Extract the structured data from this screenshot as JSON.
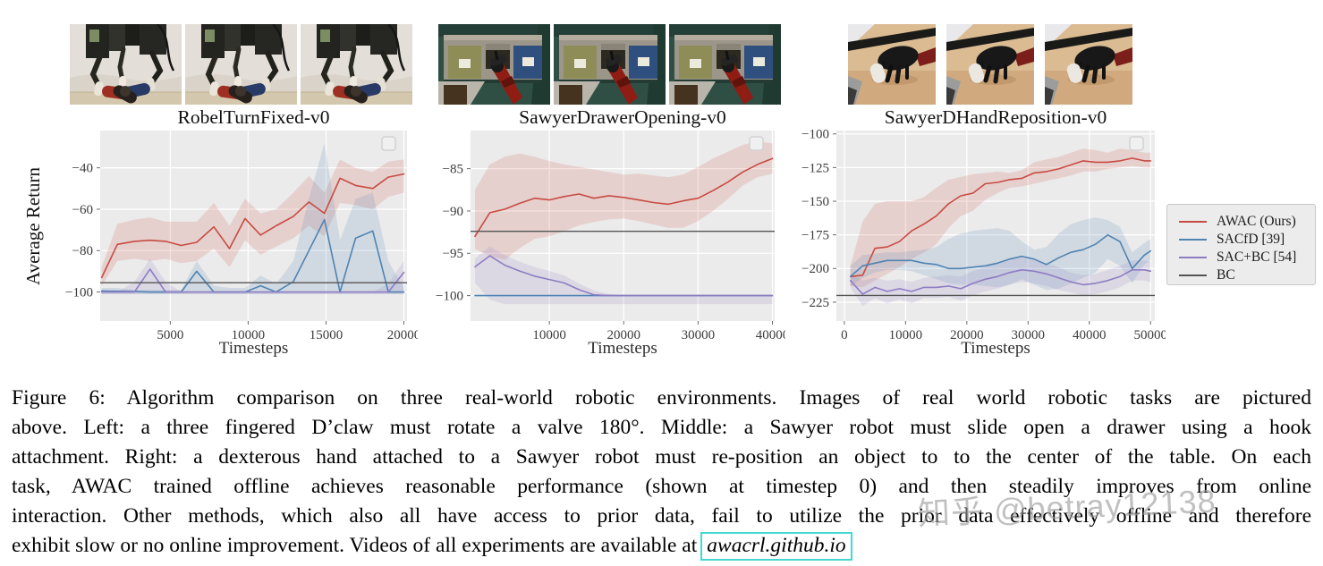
{
  "figure": {
    "caption_lines": [
      "Figure 6: Algorithm comparison on three real-world robotic environments. Images of real world robotic tasks are pictured",
      "above. Left: a three fingered D’claw must rotate a valve 180°. Middle: a Sawyer robot must slide open a drawer using a hook",
      "attachment. Right: a dexterous hand attached to a Sawyer robot must re-position an object to to the center of the table. On each",
      "task, AWAC trained offline achieves reasonable performance (shown at timestep 0) and then steadily improves from online",
      "interaction. Other methods, which also all have access to prior data, fail to utilize the prior data effectively offline and therefore"
    ],
    "caption_last_line": "exhibit slow or no online improvement. Videos of all experiments are available at",
    "link_text": "awacrl.github.io"
  },
  "watermark": {
    "text": "知乎 @betray12138"
  },
  "legend": {
    "items": [
      {
        "label": "AWAC (Ours)",
        "color": "#c84b42"
      },
      {
        "label": "SACfD [39]",
        "color": "#4f83b2"
      },
      {
        "label": "SAC+BC [54]",
        "color": "#8e7cc3"
      },
      {
        "label": "BC",
        "color": "#545454"
      }
    ]
  },
  "photos": {
    "groups": [
      {
        "name": "dclaw-valve-turning",
        "frames": 3
      },
      {
        "name": "sawyer-drawer-opening",
        "frames": 3
      },
      {
        "name": "sawyer-dhand-reposition",
        "frames": 3
      }
    ]
  },
  "chart_data": [
    {
      "type": "line",
      "title": "RobelTurnFixed-v0",
      "xlabel": "Timesteps",
      "ylabel": "Average Return",
      "xlim": [
        500,
        20200
      ],
      "ylim": [
        -114,
        -22
      ],
      "xticks": [
        5000,
        10000,
        15000,
        20000
      ],
      "yticks": [
        -40,
        -60,
        -80,
        -100
      ],
      "grid": true,
      "series": [
        {
          "name": "AWAC (Ours)",
          "color": "#c84b42",
          "x": [
            600,
            1600,
            2700,
            3700,
            4700,
            5700,
            6700,
            7800,
            8800,
            9800,
            10800,
            11800,
            12900,
            13900,
            14900,
            15900,
            16900,
            18000,
            19000,
            20000
          ],
          "y": [
            -93,
            -77,
            -75.5,
            -75,
            -75.5,
            -77.5,
            -76,
            -68.5,
            -79,
            -64.5,
            -72.5,
            -68,
            -63.5,
            -56.5,
            -62,
            -45,
            -48.5,
            -50,
            -44.5,
            -43
          ],
          "band_upper": [
            -88,
            -67,
            -65,
            -64,
            -66,
            -66,
            -66,
            -57,
            -68,
            -55,
            -62,
            -60,
            -52,
            -44,
            -52,
            -36,
            -40,
            -42,
            -37,
            -36
          ],
          "band_lower": [
            -97,
            -85,
            -84,
            -85,
            -84,
            -86,
            -85,
            -79,
            -88,
            -75,
            -82,
            -78,
            -74,
            -68,
            -73,
            -57,
            -58,
            -60,
            -54,
            -52
          ]
        },
        {
          "name": "SACfD [39]",
          "color": "#4f83b2",
          "x": [
            600,
            1600,
            2700,
            3700,
            4700,
            5700,
            6700,
            7800,
            8800,
            9800,
            10800,
            11800,
            12900,
            13900,
            14900,
            15900,
            16900,
            18000,
            19000,
            20000
          ],
          "y": [
            -99.5,
            -99.6,
            -99.8,
            -100,
            -100,
            -100,
            -90,
            -100,
            -100,
            -100,
            -97,
            -100,
            -95,
            -80,
            -65,
            -100,
            -74,
            -70.5,
            -100,
            -100
          ],
          "band_upper": [
            -98,
            -98,
            -99,
            -99,
            -99,
            -99,
            -85,
            -97,
            -98,
            -98,
            -92,
            -96,
            -85,
            -55,
            -28,
            -75,
            -55,
            -52,
            -85,
            -98
          ],
          "band_lower": [
            -101,
            -101,
            -101,
            -101,
            -101,
            -101,
            -101,
            -101,
            -101,
            -101,
            -101,
            -101,
            -101,
            -101,
            -101,
            -101,
            -101,
            -101,
            -101,
            -101
          ]
        },
        {
          "name": "SAC+BC [54]",
          "color": "#8e7cc3",
          "x": [
            600,
            1600,
            2700,
            3700,
            4700,
            5700,
            6700,
            7800,
            8800,
            9800,
            10800,
            11800,
            12900,
            13900,
            14900,
            15900,
            16900,
            18000,
            19000,
            20000
          ],
          "y": [
            -100,
            -100,
            -100,
            -89,
            -100,
            -100,
            -100,
            -100,
            -100,
            -100,
            -100,
            -100,
            -100,
            -100,
            -100,
            -100,
            -100,
            -100,
            -100,
            -90.5
          ],
          "band_upper": [
            -100,
            -100,
            -95,
            -84,
            -95,
            -100,
            -100,
            -100,
            -100,
            -100,
            -100,
            -100,
            -100,
            -100,
            -100,
            -100,
            -100,
            -100,
            -96,
            -85
          ],
          "band_lower": [
            -101,
            -101,
            -101,
            -101,
            -101,
            -101,
            -101,
            -101,
            -101,
            -101,
            -101,
            -101,
            -101,
            -101,
            -101,
            -101,
            -101,
            -101,
            -101,
            -101
          ]
        },
        {
          "name": "BC",
          "color": "#545454",
          "baseline": -95.5
        }
      ]
    },
    {
      "type": "line",
      "title": "SawyerDrawerOpening-v0",
      "xlabel": "Timesteps",
      "ylabel": "",
      "xlim": [
        -600,
        40300
      ],
      "ylim": [
        -103,
        -80.5
      ],
      "xticks": [
        10000,
        20000,
        30000,
        40000
      ],
      "yticks": [
        -85,
        -90,
        -95,
        -100
      ],
      "grid": true,
      "series": [
        {
          "name": "AWAC (Ours)",
          "color": "#c84b42",
          "x": [
            0,
            2000,
            4000,
            6000,
            8000,
            10000,
            12000,
            14000,
            16000,
            18000,
            20000,
            22000,
            24000,
            26000,
            28000,
            30000,
            32000,
            34000,
            36000,
            38000,
            40000
          ],
          "y": [
            -93,
            -90.2,
            -89.8,
            -89.1,
            -88.5,
            -88.7,
            -88.3,
            -88,
            -88.5,
            -88.2,
            -88.4,
            -88.7,
            -89,
            -89.2,
            -88.8,
            -88.5,
            -87.6,
            -86.6,
            -85.4,
            -84.5,
            -83.8
          ],
          "band_upper": [
            -87.5,
            -84.5,
            -83.6,
            -83.2,
            -83.6,
            -84.1,
            -84.5,
            -84.8,
            -85.1,
            -85.4,
            -85.7,
            -85.6,
            -85.8,
            -86,
            -85.7,
            -84.8,
            -83.8,
            -83,
            -82.2,
            -81.8,
            -82
          ],
          "band_lower": [
            -94.5,
            -95.3,
            -95.8,
            -94.4,
            -93.3,
            -93,
            -92.4,
            -91.7,
            -91.3,
            -91,
            -90.9,
            -91.2,
            -91.6,
            -92,
            -92,
            -91.2,
            -90,
            -88.6,
            -87,
            -86,
            -85.6
          ]
        },
        {
          "name": "SACfD [39]",
          "color": "#4f83b2",
          "x": [
            0,
            2000,
            4000,
            6000,
            8000,
            10000,
            12000,
            14000,
            16000,
            18000,
            20000,
            22000,
            24000,
            26000,
            28000,
            30000,
            32000,
            34000,
            36000,
            38000,
            40000
          ],
          "y": [
            -100,
            -100,
            -100,
            -100,
            -100,
            -100,
            -100,
            -100,
            -100,
            -100,
            -100,
            -100,
            -100,
            -100,
            -100,
            -100,
            -100,
            -100,
            -100,
            -100,
            -100
          ]
        },
        {
          "name": "SAC+BC [54]",
          "color": "#8e7cc3",
          "x": [
            0,
            2000,
            4000,
            6000,
            8000,
            10000,
            12000,
            14000,
            16000,
            18000,
            20000,
            22000,
            24000,
            26000,
            28000,
            30000,
            32000,
            34000,
            36000,
            38000,
            40000
          ],
          "y": [
            -96.6,
            -95.3,
            -96.4,
            -97.1,
            -97.7,
            -98.1,
            -98.5,
            -99.3,
            -99.9,
            -100,
            -100,
            -100,
            -100,
            -100,
            -100,
            -100,
            -100,
            -100,
            -100,
            -100,
            -100
          ],
          "band_upper": [
            -95.6,
            -94.2,
            -95.2,
            -96,
            -96.6,
            -97.1,
            -97.6,
            -98.6,
            -99.4,
            -99.8,
            -100,
            -100,
            -100,
            -100,
            -100,
            -100,
            -100,
            -100,
            -100,
            -100,
            -100
          ],
          "band_lower": [
            -98.5,
            -100.5,
            -101,
            -101,
            -101,
            -101,
            -101,
            -101,
            -101,
            -101,
            -101,
            -101,
            -101,
            -101,
            -101,
            -101,
            -101,
            -101,
            -101,
            -101,
            -101
          ]
        },
        {
          "name": "BC",
          "color": "#545454",
          "baseline": -92.4
        }
      ]
    },
    {
      "type": "line",
      "title": "SawyerDHandReposition-v0",
      "xlabel": "Timesteps",
      "ylabel": "",
      "xlim": [
        -1300,
        50700
      ],
      "ylim": [
        -239,
        -97.5
      ],
      "xticks": [
        0,
        10000,
        20000,
        30000,
        40000,
        50000
      ],
      "yticks": [
        -100,
        -125,
        -150,
        -175,
        -200,
        -225
      ],
      "grid": true,
      "series": [
        {
          "name": "AWAC (Ours)",
          "color": "#c84b42",
          "x": [
            1000,
            3000,
            5000,
            7000,
            9000,
            11000,
            13000,
            15000,
            17000,
            19000,
            21000,
            23000,
            25000,
            27000,
            29000,
            31000,
            33000,
            35000,
            37000,
            39000,
            41000,
            43000,
            45000,
            47000,
            49000,
            50000
          ],
          "y": [
            -206,
            -205,
            -185,
            -184,
            -180,
            -172,
            -167,
            -161,
            -152,
            -146,
            -144,
            -137,
            -136,
            -134,
            -133,
            -129,
            -128,
            -126,
            -123,
            -120,
            -121,
            -121,
            -120,
            -118,
            -120,
            -120
          ],
          "band_upper": [
            -198,
            -165,
            -152,
            -150,
            -150,
            -150,
            -147,
            -140,
            -134,
            -132,
            -130,
            -129,
            -128,
            -129,
            -127,
            -121,
            -119,
            -117,
            -114,
            -111,
            -112,
            -114,
            -111,
            -112,
            -114,
            -114
          ],
          "band_lower": [
            -213,
            -214,
            -209,
            -204,
            -199,
            -193,
            -188,
            -182,
            -170,
            -161,
            -157,
            -149,
            -144,
            -140,
            -139,
            -137,
            -135,
            -133,
            -131,
            -128,
            -128,
            -126,
            -125,
            -124,
            -125,
            -125
          ]
        },
        {
          "name": "SACfD [39]",
          "color": "#4f83b2",
          "x": [
            1000,
            3000,
            5000,
            7000,
            9000,
            11000,
            13000,
            15000,
            17000,
            19000,
            21000,
            23000,
            25000,
            27000,
            29000,
            31000,
            33000,
            35000,
            37000,
            39000,
            41000,
            43000,
            45000,
            47000,
            49000,
            50000
          ],
          "y": [
            -206,
            -198,
            -196,
            -194,
            -194,
            -194,
            -196,
            -197,
            -200,
            -200,
            -199,
            -198,
            -196,
            -193,
            -191,
            -193,
            -197,
            -192,
            -188,
            -186,
            -182,
            -175,
            -180,
            -200,
            -190,
            -187
          ],
          "band_upper": [
            -198,
            -190,
            -189,
            -188,
            -188,
            -187,
            -186,
            -184,
            -178,
            -174,
            -172,
            -171,
            -170,
            -172,
            -180,
            -186,
            -184,
            -174,
            -167,
            -164,
            -162,
            -164,
            -169,
            -188,
            -181,
            -178
          ],
          "band_lower": [
            -213,
            -207,
            -203,
            -201,
            -201,
            -202,
            -205,
            -208,
            -211,
            -212,
            -212,
            -213,
            -214,
            -212,
            -208,
            -212,
            -216,
            -215,
            -211,
            -207,
            -203,
            -193,
            -198,
            -211,
            -197,
            -194
          ]
        },
        {
          "name": "SAC+BC [54]",
          "color": "#8e7cc3",
          "x": [
            1000,
            3000,
            5000,
            7000,
            9000,
            11000,
            13000,
            15000,
            17000,
            19000,
            21000,
            23000,
            25000,
            27000,
            29000,
            31000,
            33000,
            35000,
            37000,
            39000,
            41000,
            43000,
            45000,
            47000,
            49000,
            50000
          ],
          "y": [
            -209,
            -219,
            -214,
            -217,
            -215,
            -217,
            -214,
            -214,
            -213,
            -215,
            -211,
            -208,
            -206,
            -203,
            -201,
            -202,
            -204,
            -207,
            -210,
            -212,
            -211,
            -209,
            -206,
            -201,
            -201,
            -202
          ],
          "band_upper": [
            -204,
            -209,
            -207,
            -209,
            -208,
            -210,
            -207,
            -206,
            -205,
            -206,
            -202,
            -199,
            -196,
            -194,
            -192,
            -194,
            -196,
            -199,
            -203,
            -205,
            -204,
            -201,
            -198,
            -194,
            -194,
            -195
          ],
          "band_lower": [
            -214,
            -228,
            -222,
            -226,
            -223,
            -226,
            -222,
            -222,
            -221,
            -224,
            -220,
            -217,
            -215,
            -212,
            -210,
            -211,
            -213,
            -216,
            -218,
            -220,
            -219,
            -217,
            -214,
            -209,
            -209,
            -210
          ]
        },
        {
          "name": "BC",
          "color": "#545454",
          "baseline": -220
        }
      ]
    }
  ]
}
